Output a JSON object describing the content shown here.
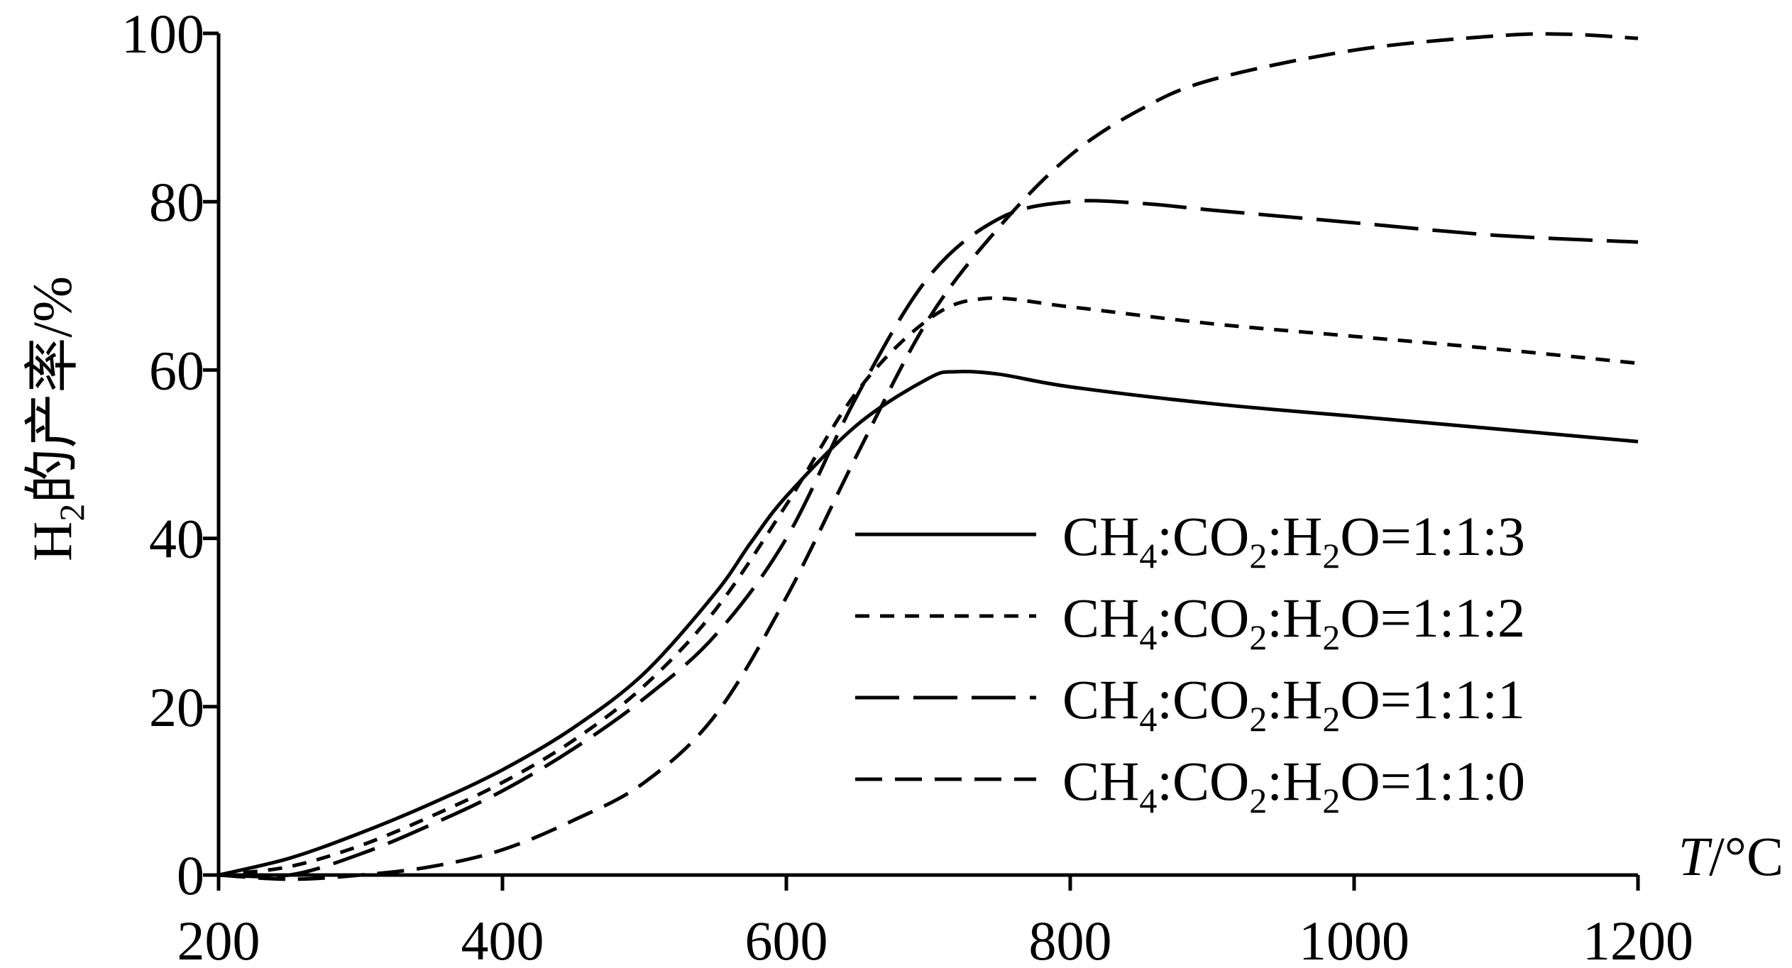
{
  "chart_data": {
    "type": "line",
    "xlabel_italic": "T",
    "xlabel_unit": "/°C",
    "ylabel_prefix": "H",
    "ylabel_sub": "2",
    "ylabel_rest": "的产率/%",
    "xlim": [
      200,
      1200
    ],
    "ylim": [
      0,
      100
    ],
    "xticks": [
      200,
      400,
      600,
      800,
      1000,
      1200
    ],
    "yticks": [
      0,
      20,
      40,
      60,
      80,
      100
    ],
    "grid": false,
    "legend_position": "lower-right",
    "series": [
      {
        "name": "CH4:CO2:H2O=1:1:3",
        "name_parts": [
          "CH",
          "4",
          ":CO",
          "2",
          ":H",
          "2",
          "O=1:1:3"
        ],
        "style": "solid",
        "x": [
          200,
          250,
          300,
          350,
          400,
          450,
          500,
          550,
          575,
          600,
          650,
          700,
          720,
          750,
          800,
          900,
          1000,
          1100,
          1200
        ],
        "y": [
          0,
          2,
          5,
          8.5,
          12.5,
          17.5,
          24,
          33.5,
          39.5,
          45,
          53.5,
          59,
          59.8,
          59.5,
          58,
          56,
          54.5,
          53,
          51.5
        ]
      },
      {
        "name": "CH4:CO2:H2O=1:1:2",
        "name_parts": [
          "CH",
          "4",
          ":CO",
          "2",
          ":H",
          "2",
          "O=1:1:2"
        ],
        "style": "dotted",
        "x": [
          200,
          250,
          300,
          350,
          400,
          450,
          500,
          550,
          600,
          650,
          700,
          740,
          800,
          900,
          1000,
          1100,
          1200
        ],
        "y": [
          0,
          1,
          3.5,
          7,
          11,
          16,
          22.5,
          31.5,
          44,
          57.5,
          66,
          68.5,
          67.5,
          65.5,
          64,
          62.5,
          60.8
        ]
      },
      {
        "name": "CH4:CO2:H2O=1:1:1",
        "name_parts": [
          "CH",
          "4",
          ":CO",
          "2",
          ":H",
          "2",
          "O=1:1:1"
        ],
        "style": "long-dash",
        "x": [
          200,
          250,
          300,
          350,
          400,
          450,
          500,
          550,
          600,
          650,
          700,
          750,
          800,
          850,
          900,
          1000,
          1100,
          1200
        ],
        "y": [
          0,
          0,
          2.5,
          6,
          10,
          15,
          21,
          28.5,
          40,
          57,
          71,
          78,
          80,
          79.8,
          79,
          77.5,
          76,
          75.2
        ]
      },
      {
        "name": "CH4:CO2:H2O=1:1:0",
        "name_parts": [
          "CH",
          "4",
          ":CO",
          "2",
          ":H",
          "2",
          "O=1:1:0"
        ],
        "style": "dash",
        "x": [
          200,
          250,
          300,
          350,
          400,
          450,
          500,
          550,
          600,
          650,
          700,
          750,
          800,
          850,
          900,
          1000,
          1100,
          1150,
          1200
        ],
        "y": [
          0,
          -0.5,
          0,
          1,
          3,
          6.5,
          11,
          19,
          33,
          50,
          66,
          77,
          85.5,
          91,
          94.5,
          98,
          99.7,
          99.9,
          99.4
        ]
      }
    ]
  }
}
